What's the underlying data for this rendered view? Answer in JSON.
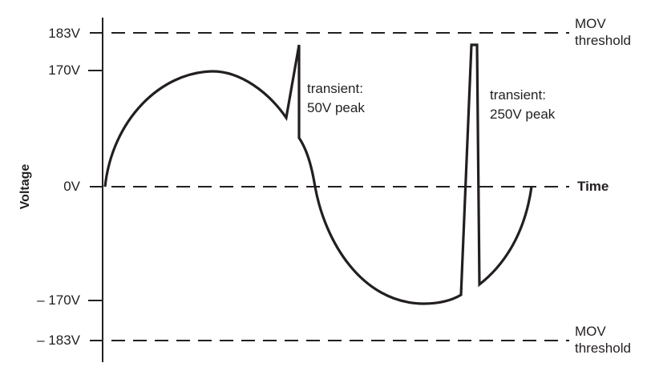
{
  "y_axis": {
    "label": "Voltage",
    "ticks": [
      "183V",
      "170V",
      "0V",
      "– 170V",
      "– 183V"
    ]
  },
  "x_axis": {
    "label": "Time"
  },
  "thresholds": {
    "upper": {
      "line1": "MOV",
      "line2": "threshold"
    },
    "lower": {
      "line1": "MOV",
      "line2": "threshold"
    }
  },
  "annotations": [
    {
      "line1": "transient:",
      "line2": "50V peak"
    },
    {
      "line1": "transient:",
      "line2": "250V peak"
    }
  ],
  "colors": {
    "ink": "#231f20",
    "background": "#ffffff"
  }
}
